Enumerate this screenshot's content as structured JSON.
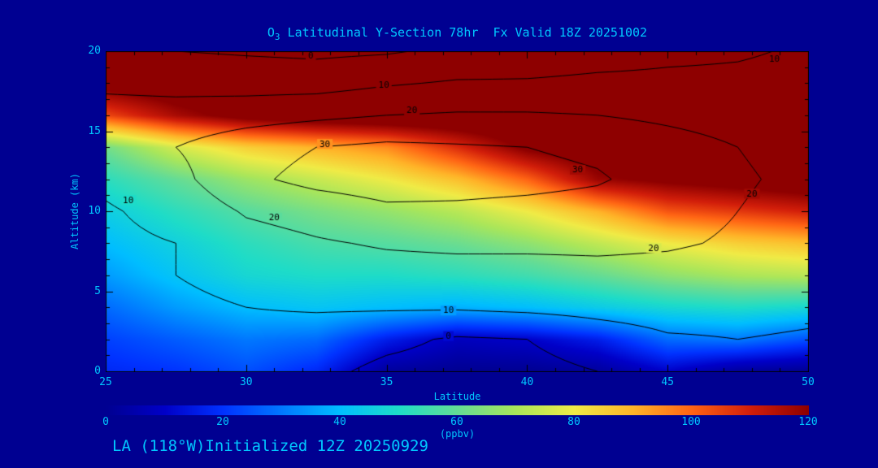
{
  "page": {
    "background": "#000091",
    "text_color": "#00c8ff"
  },
  "chart_data": {
    "type": "heatmap",
    "title_species": "O",
    "title_species_sub": "3",
    "title_rest": " Latitudinal Y-Section 78hr  Fx Valid 18Z 20251002",
    "title_full": "O3 Latitudinal Y-Section 78hr  Fx Valid 18Z 20251002",
    "footer": "LA (118°W)Initialized 12Z 20250929",
    "xlabel": "Latitude",
    "ylabel": "Altitude (km)",
    "colorbar_label": "(ppbv)",
    "x_range": [
      25,
      50
    ],
    "y_range": [
      0,
      20
    ],
    "x_ticks": [
      25,
      30,
      35,
      40,
      45,
      50
    ],
    "y_ticks": [
      0,
      5,
      10,
      15,
      20
    ],
    "colorbar_range": [
      0,
      120
    ],
    "colorbar_ticks": [
      0,
      20,
      40,
      60,
      80,
      100,
      120
    ],
    "lat_points": [
      25,
      27.5,
      30,
      32.5,
      35,
      37.5,
      40,
      42.5,
      45,
      47.5,
      50
    ],
    "alt_points": [
      20,
      18,
      16,
      14,
      12,
      10,
      8,
      6,
      4,
      2,
      0
    ],
    "ozone_fill_ppbv": [
      [
        130,
        130,
        130,
        130,
        130,
        130,
        130,
        130,
        130,
        130,
        130
      ],
      [
        124,
        128,
        130,
        130,
        130,
        130,
        130,
        130,
        130,
        130,
        130
      ],
      [
        104,
        116,
        124,
        128,
        130,
        130,
        130,
        130,
        130,
        130,
        130
      ],
      [
        62,
        76,
        85,
        90,
        95,
        108,
        122,
        128,
        130,
        130,
        130
      ],
      [
        52,
        60,
        68,
        74,
        80,
        88,
        100,
        118,
        122,
        125,
        128
      ],
      [
        45,
        52,
        58,
        63,
        67,
        72,
        80,
        90,
        102,
        106,
        110
      ],
      [
        40,
        46,
        52,
        56,
        58,
        61,
        66,
        73,
        80,
        85,
        88
      ],
      [
        35,
        42,
        48,
        50,
        50,
        52,
        55,
        60,
        66,
        70,
        72
      ],
      [
        28,
        35,
        40,
        42,
        40,
        38,
        40,
        44,
        48,
        50,
        48
      ],
      [
        22,
        26,
        30,
        28,
        16,
        8,
        10,
        16,
        28,
        30,
        24
      ],
      [
        18,
        20,
        24,
        18,
        2,
        0,
        0,
        2,
        10,
        2,
        0
      ]
    ],
    "overlay_contours": {
      "levels": [
        0,
        10,
        20,
        30
      ],
      "line_color": "#000000",
      "values": [
        [
          2,
          0,
          -1,
          -2,
          -1,
          2,
          4,
          6,
          8,
          9,
          11
        ],
        [
          8,
          7,
          6,
          6,
          9,
          11,
          11,
          12,
          12,
          12,
          13
        ],
        [
          14,
          14,
          16,
          18,
          20,
          21,
          21,
          20,
          18,
          16,
          15
        ],
        [
          18,
          20,
          26,
          30,
          32,
          31,
          30,
          28,
          24,
          20,
          17
        ],
        [
          12,
          17,
          28,
          33,
          35,
          34,
          33,
          31,
          26,
          21,
          18
        ],
        [
          9,
          13,
          21,
          24,
          28,
          28,
          27,
          26,
          23,
          20,
          17
        ],
        [
          8,
          10,
          16,
          19,
          21,
          22,
          22,
          22,
          21,
          19,
          16
        ],
        [
          7,
          10,
          13,
          15,
          16,
          16,
          16,
          17,
          17,
          16,
          14
        ],
        [
          6,
          8,
          10,
          11,
          11,
          11,
          12,
          13,
          14,
          13,
          12
        ],
        [
          5,
          6,
          7,
          5,
          2,
          -1,
          0,
          5,
          9,
          10,
          9
        ],
        [
          4,
          5,
          5,
          2,
          -2,
          -3,
          -3,
          0,
          5,
          7,
          6
        ]
      ],
      "labels": [
        {
          "text": "0",
          "lat": 32.3,
          "alt": 19.7
        },
        {
          "text": "10",
          "lat": 34.9,
          "alt": 17.9
        },
        {
          "text": "10",
          "lat": 48.8,
          "alt": 19.5
        },
        {
          "text": "20",
          "lat": 35.9,
          "alt": 16.3
        },
        {
          "text": "30",
          "lat": 32.8,
          "alt": 14.2
        },
        {
          "text": "30",
          "lat": 41.8,
          "alt": 12.6
        },
        {
          "text": "10",
          "lat": 25.8,
          "alt": 10.7
        },
        {
          "text": "20",
          "lat": 31.0,
          "alt": 9.6
        },
        {
          "text": "20",
          "lat": 48.0,
          "alt": 11.1
        },
        {
          "text": "20",
          "lat": 44.5,
          "alt": 7.7
        },
        {
          "text": "10",
          "lat": 37.2,
          "alt": 3.8
        },
        {
          "text": "0",
          "lat": 37.2,
          "alt": 2.2
        }
      ]
    },
    "colormap": [
      [
        0,
        "#000091"
      ],
      [
        10,
        "#0000c8"
      ],
      [
        20,
        "#0032ff"
      ],
      [
        30,
        "#0078ff"
      ],
      [
        40,
        "#00beff"
      ],
      [
        50,
        "#1edcc8"
      ],
      [
        60,
        "#64dc96"
      ],
      [
        70,
        "#aae65a"
      ],
      [
        80,
        "#f0eb46"
      ],
      [
        90,
        "#ffb428"
      ],
      [
        100,
        "#ff6414"
      ],
      [
        110,
        "#d21e0a"
      ],
      [
        120,
        "#8e0000"
      ]
    ]
  }
}
